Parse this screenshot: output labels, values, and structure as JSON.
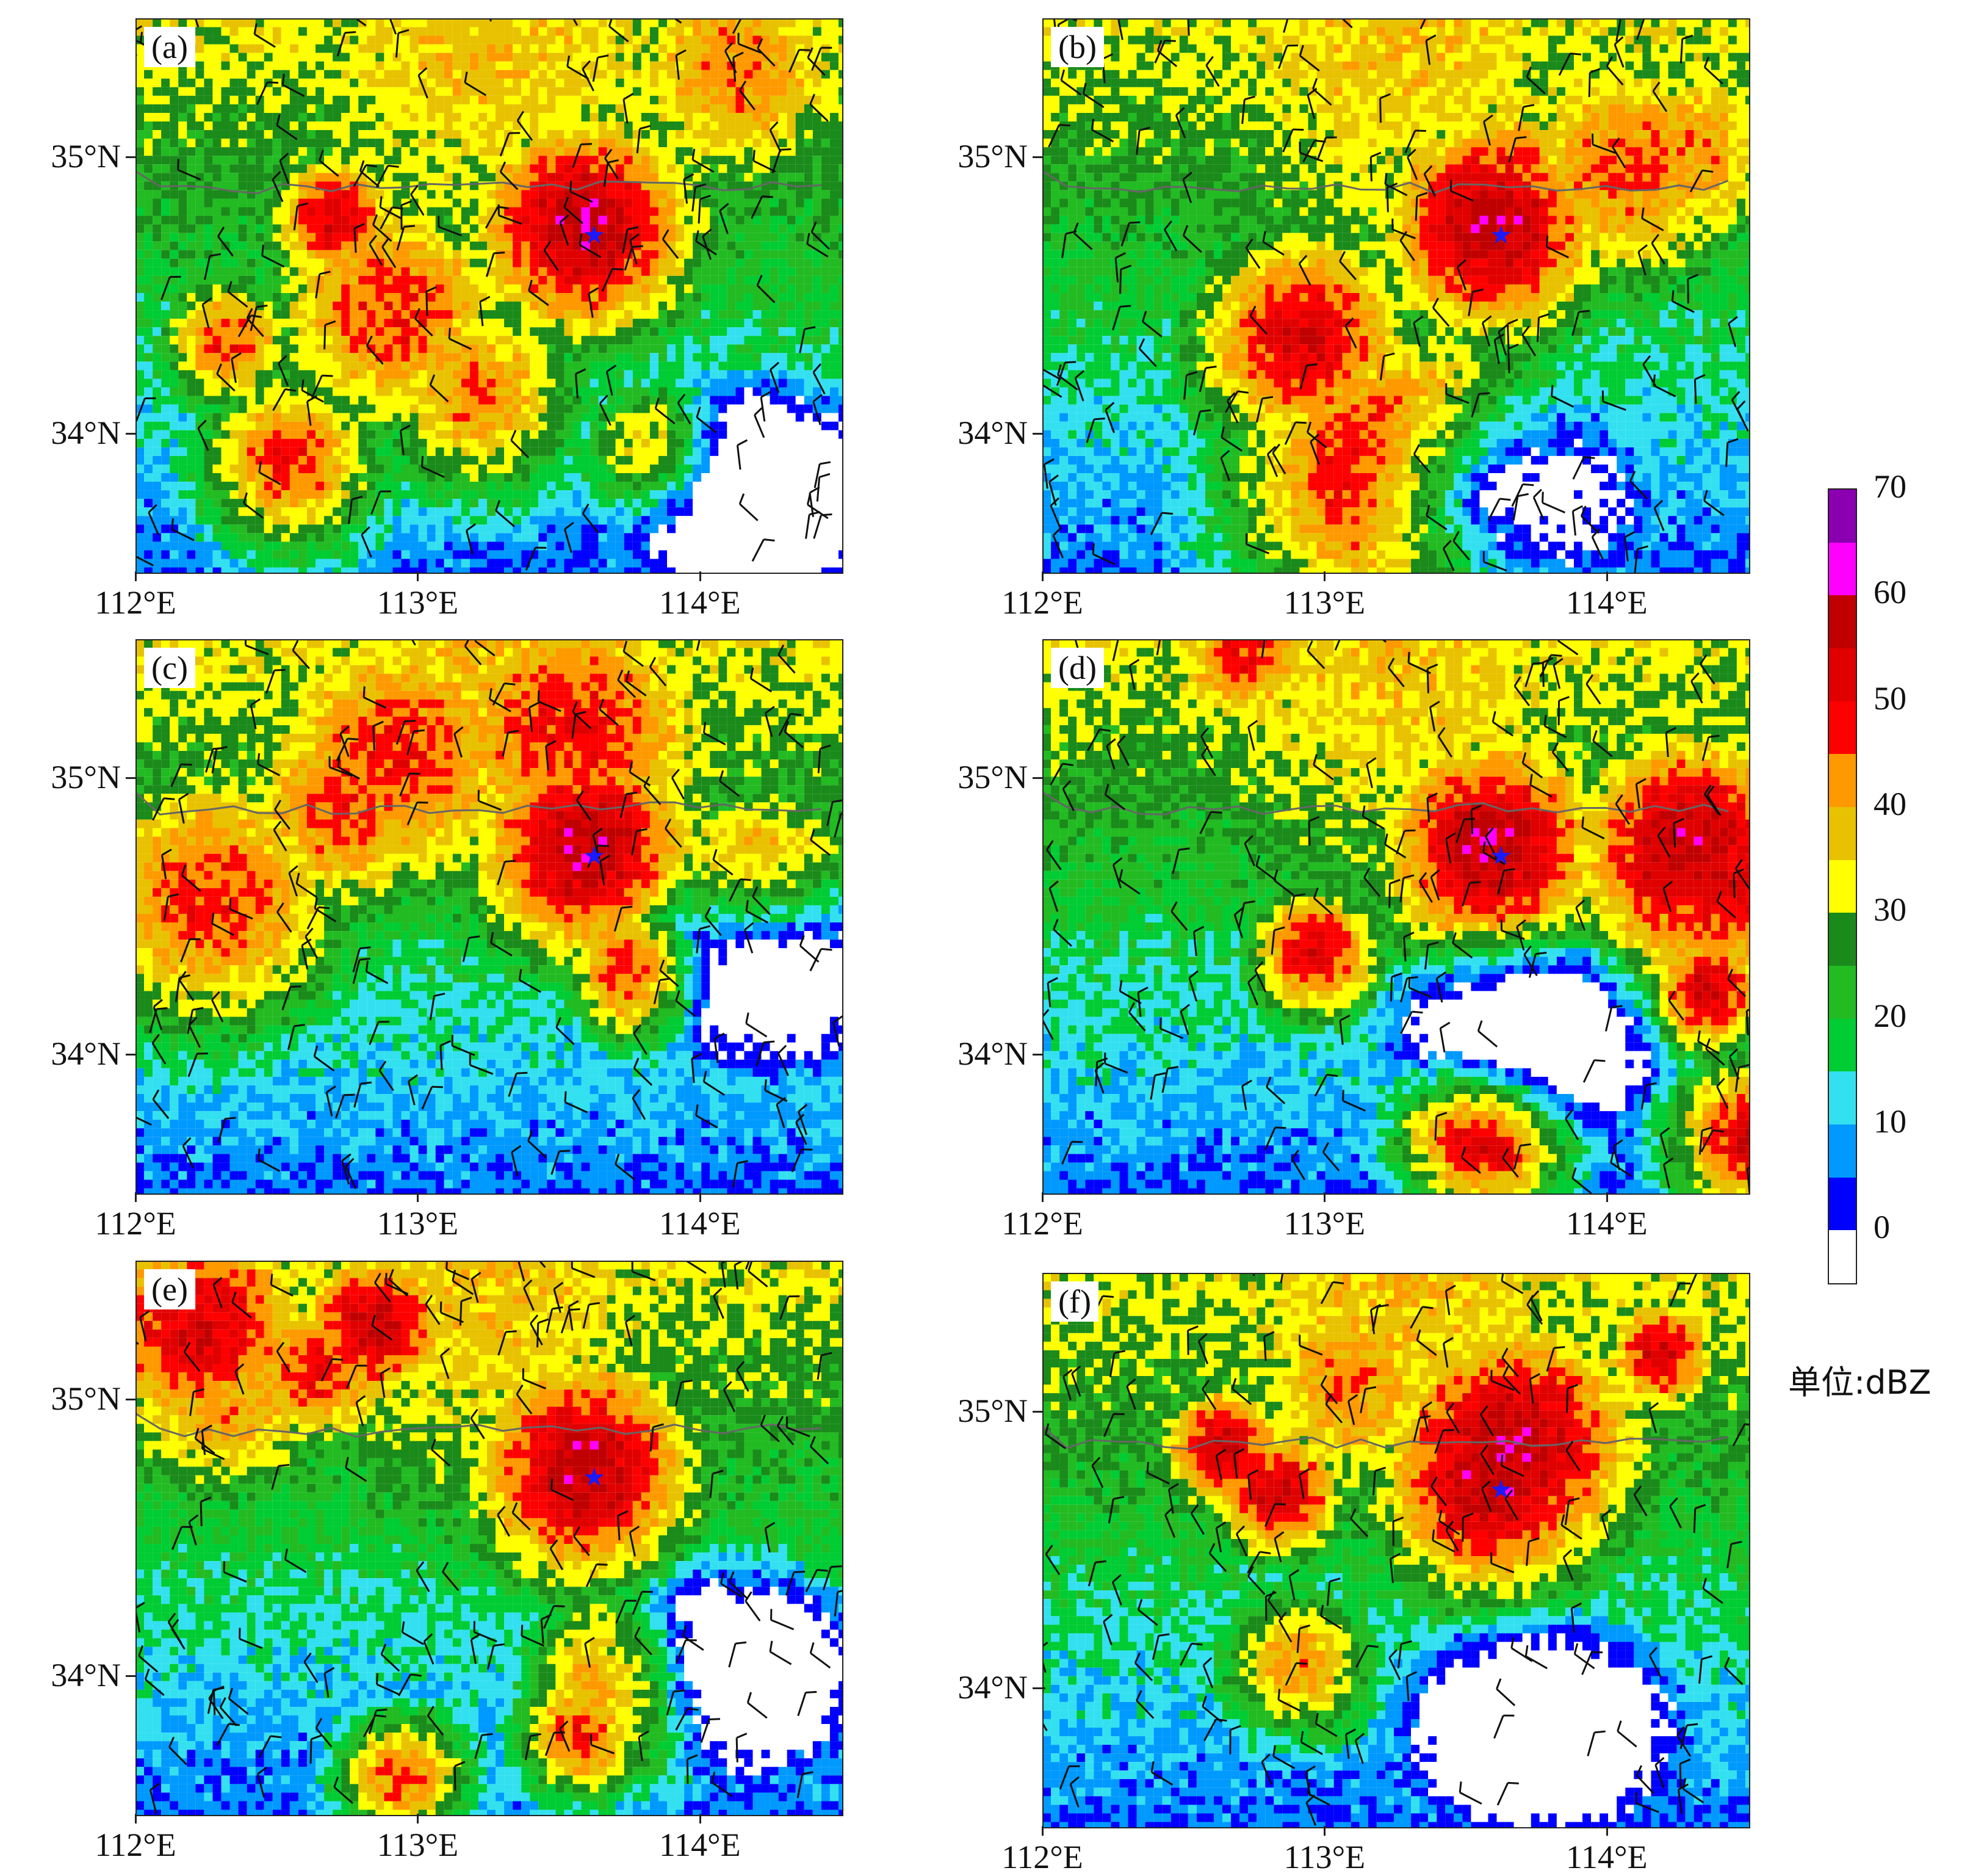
{
  "panels": [
    {
      "label": "(a)",
      "seed": 11
    },
    {
      "label": "(b)",
      "seed": 23
    },
    {
      "label": "(c)",
      "seed": 37
    },
    {
      "label": "(d)",
      "seed": 41
    },
    {
      "label": "(e)",
      "seed": 53
    },
    {
      "label": "(f)",
      "seed": 67
    }
  ],
  "map_extent": {
    "lon": [
      112.0,
      114.5
    ],
    "lat": [
      33.5,
      35.5
    ]
  },
  "lat_ticks": [
    "35°N",
    "34°N"
  ],
  "lon_ticks": [
    "112°E",
    "113°E",
    "114°E"
  ],
  "station_marker": {
    "lon": 113.62,
    "lat": 34.72,
    "color": "#1a1aff",
    "symbol": "★"
  },
  "colorbar": {
    "ticks": [
      "70",
      "60",
      "50",
      "40",
      "30",
      "20",
      "10",
      "0"
    ],
    "unit_label": "单位:dBZ",
    "bins": [
      {
        "min": -5,
        "max": 0,
        "color": "#ffffff"
      },
      {
        "min": 0,
        "max": 5,
        "color": "#0000ff"
      },
      {
        "min": 5,
        "max": 10,
        "color": "#0099ff"
      },
      {
        "min": 10,
        "max": 15,
        "color": "#33e0f0"
      },
      {
        "min": 15,
        "max": 20,
        "color": "#00cc33"
      },
      {
        "min": 20,
        "max": 25,
        "color": "#22bb22"
      },
      {
        "min": 25,
        "max": 30,
        "color": "#1a8a1a"
      },
      {
        "min": 30,
        "max": 35,
        "color": "#ffff00"
      },
      {
        "min": 35,
        "max": 40,
        "color": "#e8c200"
      },
      {
        "min": 40,
        "max": 45,
        "color": "#ff9900"
      },
      {
        "min": 45,
        "max": 50,
        "color": "#ff0000"
      },
      {
        "min": 50,
        "max": 55,
        "color": "#e00000"
      },
      {
        "min": 55,
        "max": 60,
        "color": "#c00000"
      },
      {
        "min": 60,
        "max": 65,
        "color": "#ff00ff"
      },
      {
        "min": 65,
        "max": 70,
        "color": "#8a00b0"
      }
    ]
  }
}
